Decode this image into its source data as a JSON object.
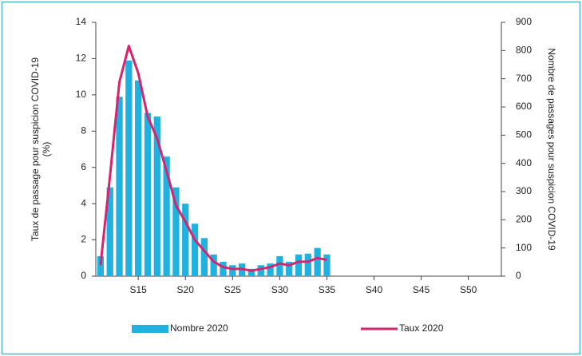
{
  "chart_data": {
    "type": "bar_line",
    "y_label": [
      "Taux de passage pour suspicion COVID-19",
      "(%)"
    ],
    "y2_label": "Nombre de passages pour suspicion COVID-19",
    "categories": [
      null,
      null,
      null,
      null,
      "S15",
      null,
      null,
      null,
      null,
      "S20",
      null,
      null,
      null,
      null,
      "S25",
      null,
      null,
      null,
      null,
      "S30",
      null,
      null,
      null,
      null,
      "S35",
      null,
      null,
      null,
      null,
      "S40",
      null,
      null,
      null,
      null,
      "S45",
      null,
      null,
      null,
      null,
      "S50",
      null,
      null,
      null
    ],
    "series": [
      {
        "name": "Nombre 2020",
        "type": "bar",
        "axis": "y2",
        "color": "#1fb1e0",
        "values": [
          71,
          315,
          636,
          765,
          694,
          579,
          566,
          424,
          315,
          257,
          186,
          135,
          77,
          51,
          39,
          45,
          26,
          39,
          45,
          71,
          51,
          77,
          80,
          100,
          77,
          null,
          null,
          null,
          null,
          null,
          null,
          null,
          null,
          null,
          null,
          null,
          null,
          null,
          null,
          null,
          null,
          null,
          null
        ]
      },
      {
        "name": "Taux 2020",
        "type": "line",
        "axis": "y",
        "color": "#d6246e",
        "values": [
          0.6,
          5.5,
          10.7,
          12.7,
          11.2,
          8.8,
          7.6,
          5.8,
          3.9,
          3.0,
          2.0,
          1.4,
          0.8,
          0.5,
          0.4,
          0.4,
          0.3,
          0.4,
          0.5,
          0.7,
          0.6,
          0.8,
          0.8,
          1.0,
          0.9,
          null,
          null,
          null,
          null,
          null,
          null,
          null,
          null,
          null,
          null,
          null,
          null,
          null,
          null,
          null,
          null,
          null,
          null
        ]
      }
    ],
    "ylim": [
      0,
      14
    ],
    "yticks": [
      0,
      2,
      4,
      6,
      8,
      10,
      12,
      14
    ],
    "y2lim": [
      0,
      900
    ],
    "y2ticks": [
      0,
      100,
      200,
      300,
      400,
      500,
      600,
      700,
      800,
      900
    ],
    "grid": false
  }
}
